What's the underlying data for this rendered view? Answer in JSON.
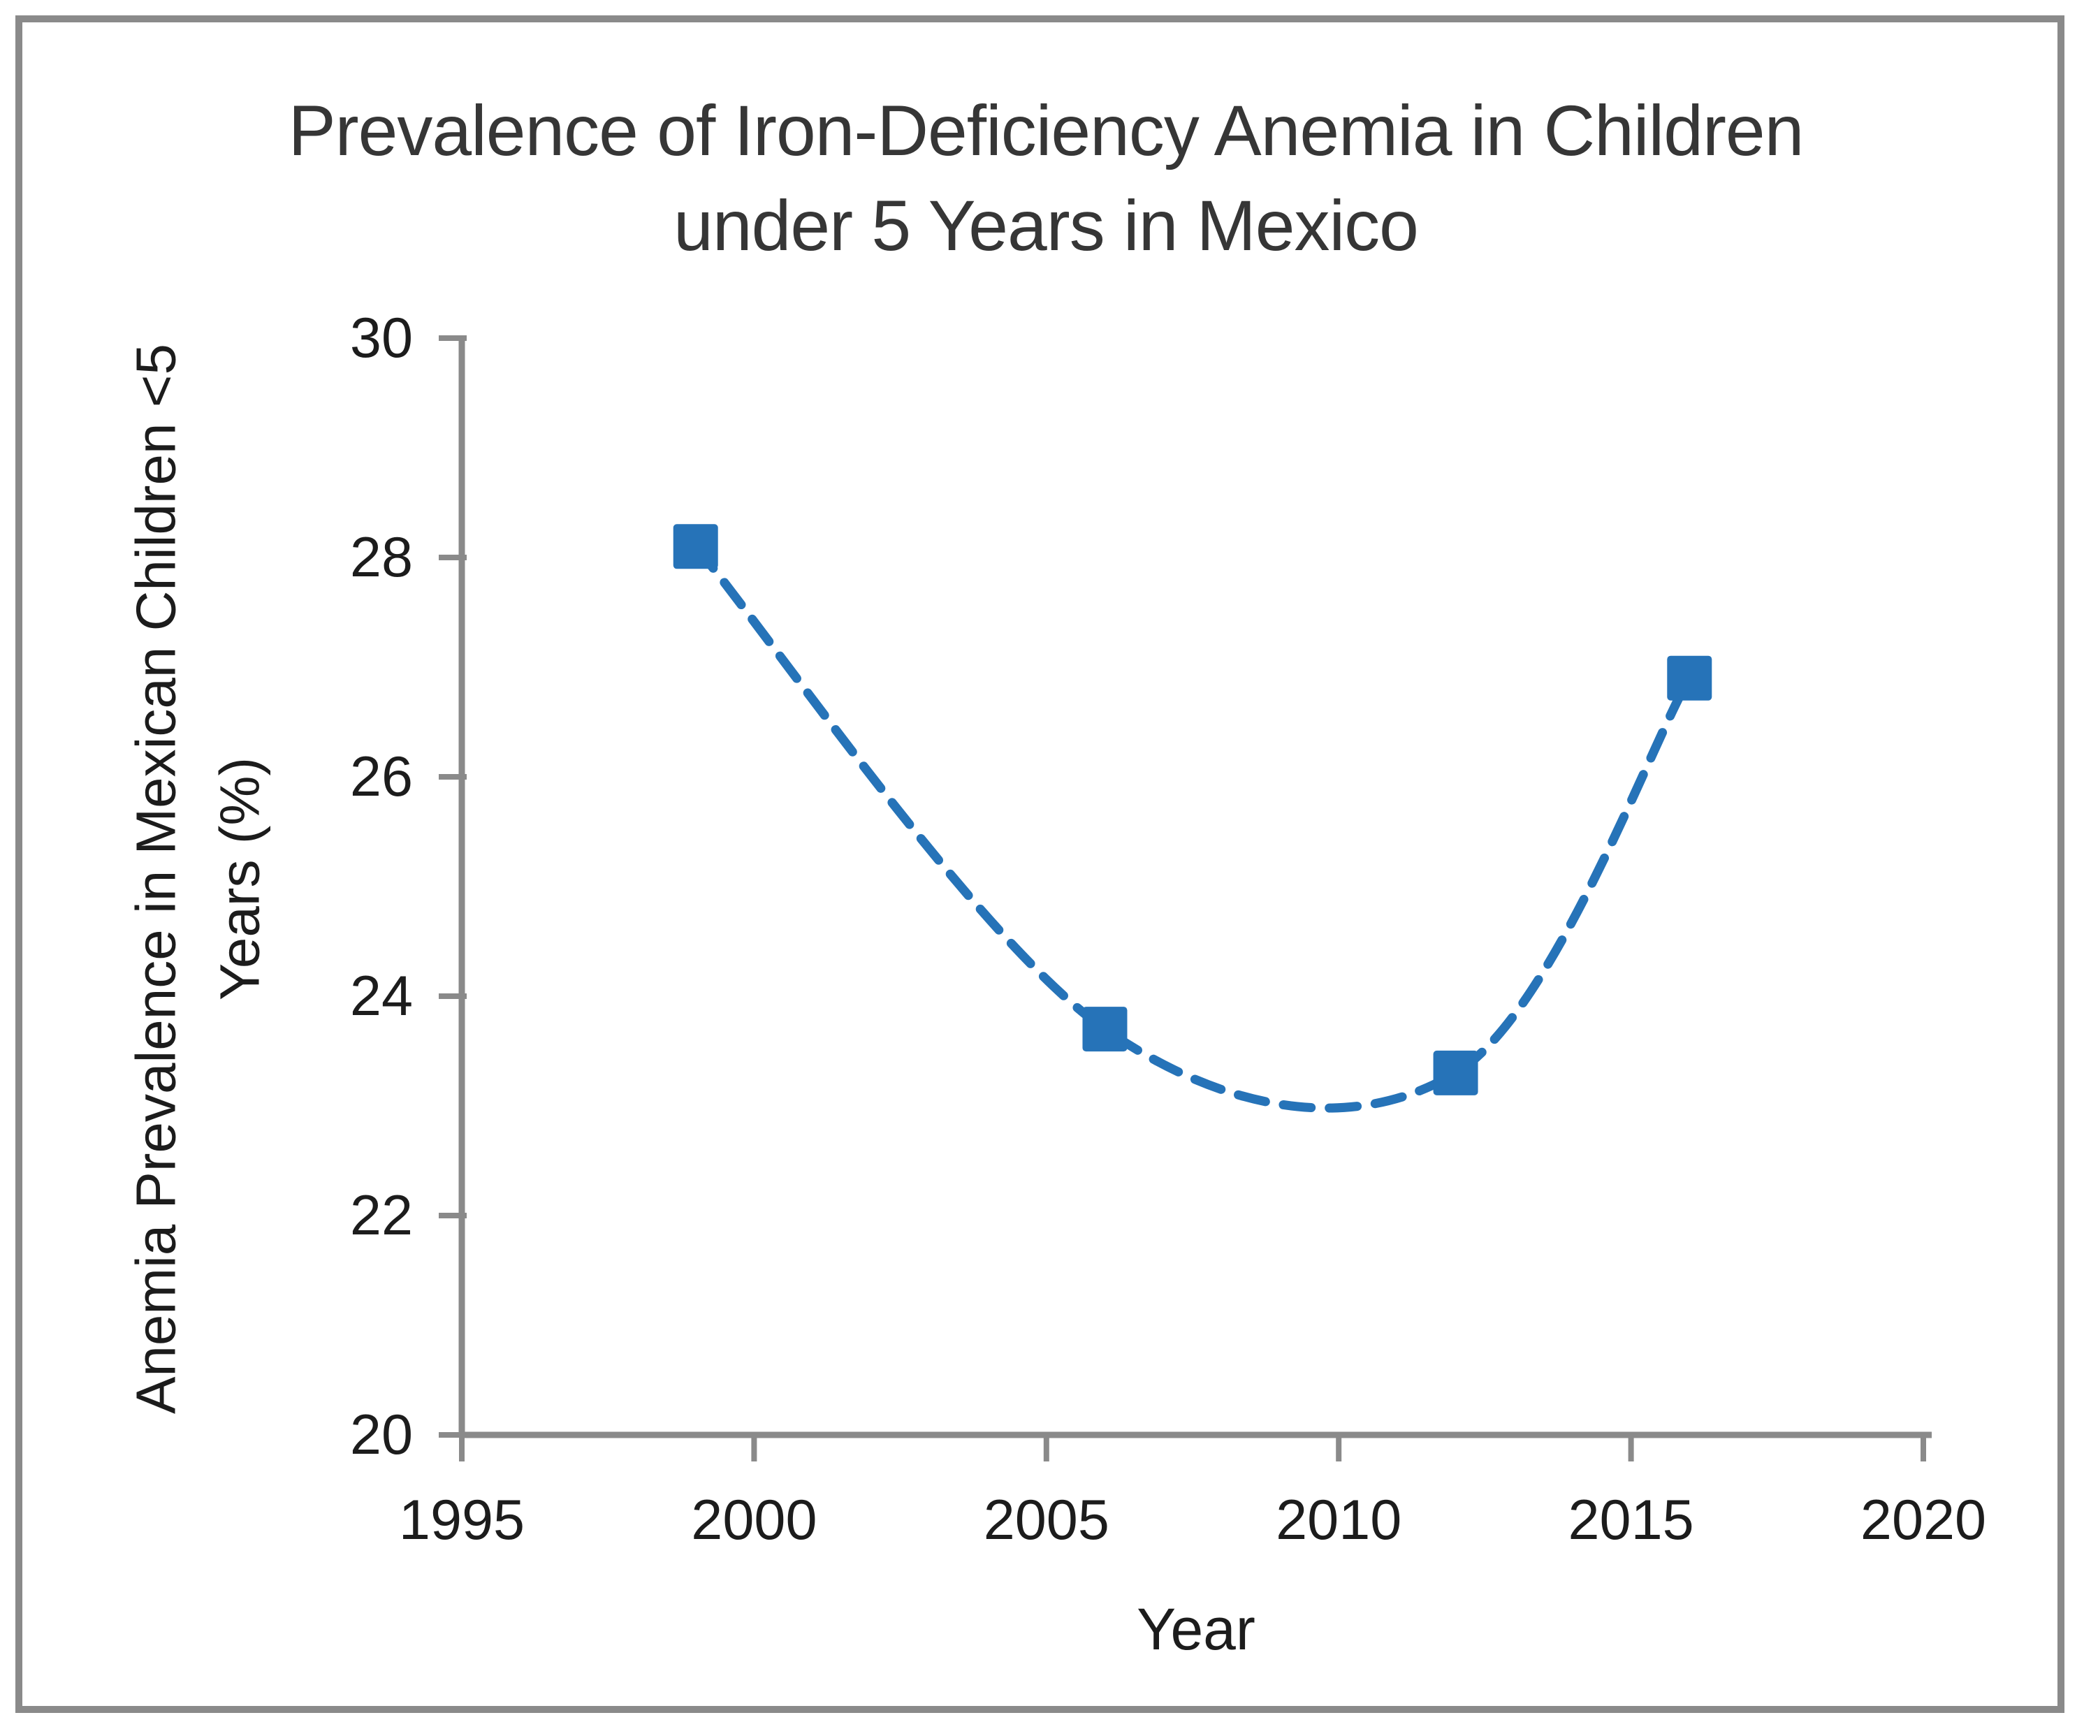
{
  "figure": {
    "background": "#ffffff",
    "border_color": "#8a8a8a"
  },
  "style": {
    "axis_color": "#8a8a8a",
    "tick_text_color": "#1c1c1c",
    "title_color": "#363636"
  },
  "chart_data": {
    "type": "line",
    "title": "Prevalence of Iron-Deficiency Anemia in Children under 5 Years in Mexico",
    "title_line1": "Prevalence of Iron-Deficiency Anemia in Children",
    "title_line2": "under 5 Years in Mexico",
    "xlabel": "Year",
    "ylabel_line1": "Anemia Prevalence in Mexican Children <5",
    "ylabel_line2": "Years (%)",
    "x": [
      1999,
      2006,
      2012,
      2016
    ],
    "y": [
      28.1,
      23.7,
      23.3,
      26.9
    ],
    "xlim": [
      1995,
      2020
    ],
    "ylim": [
      20,
      30
    ],
    "x_ticks": [
      1995,
      2000,
      2005,
      2010,
      2015,
      2020
    ],
    "y_ticks": [
      20,
      22,
      24,
      26,
      28,
      30
    ],
    "grid": false,
    "legend": false,
    "line": {
      "color": "#2673B8",
      "style": "dashed",
      "smooth": true,
      "width": 13
    },
    "marker": {
      "shape": "square",
      "color": "#2673B8",
      "size": 64
    }
  }
}
